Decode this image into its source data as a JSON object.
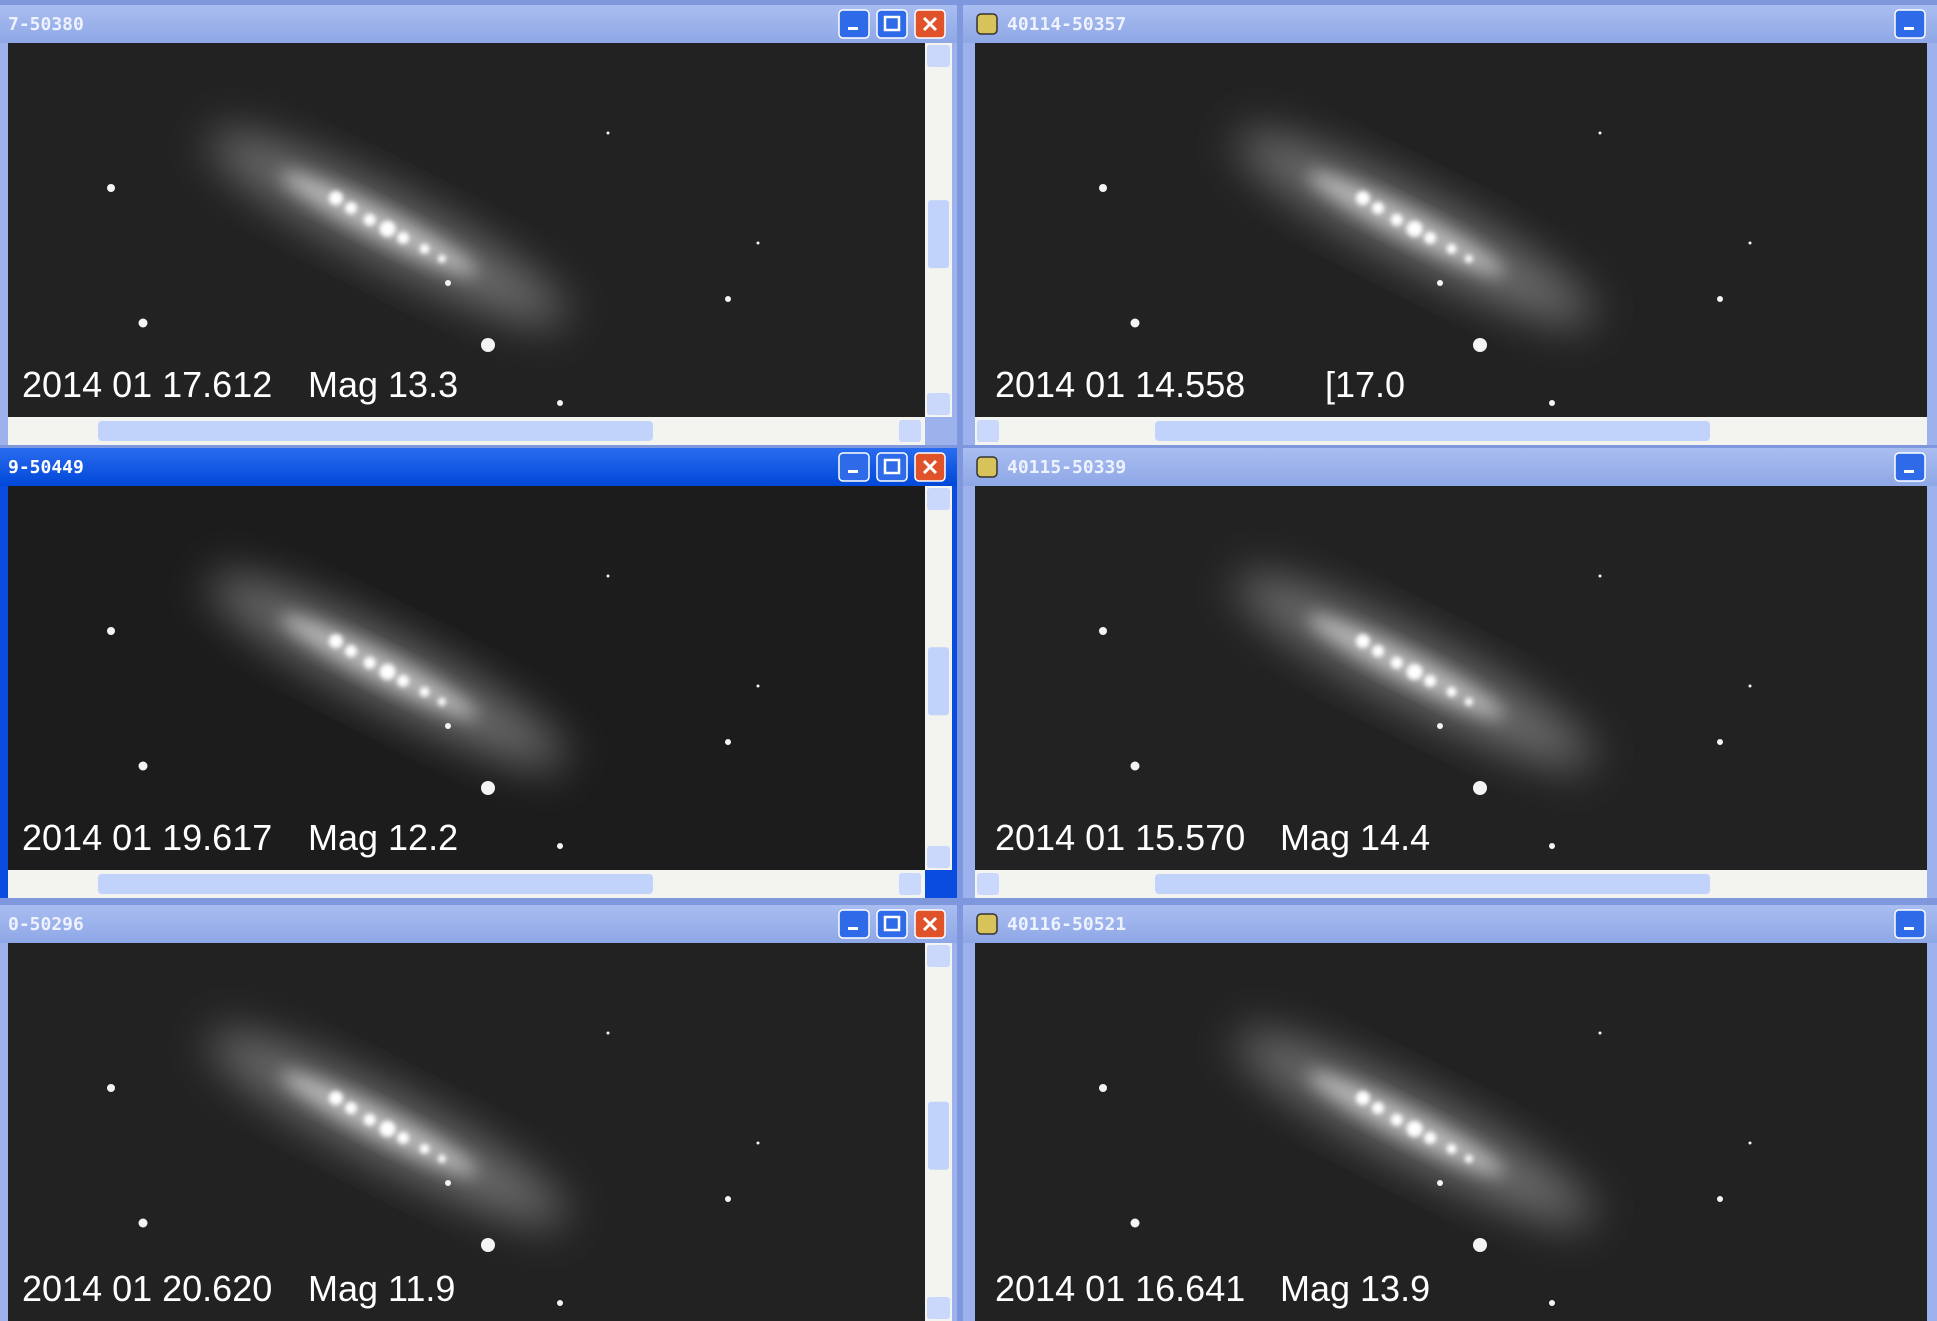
{
  "windows": [
    {
      "title": "7-50380",
      "date": "2014 01 17.612",
      "mag": "Mag 13.3"
    },
    {
      "title": "40114-50357",
      "date": "2014 01 14.558",
      "mag": "[17.0"
    },
    {
      "title": "9-50449",
      "date": "2014 01 19.617",
      "mag": "Mag 12.2"
    },
    {
      "title": "40115-50339",
      "date": "2014 01 15.570",
      "mag": "Mag 14.4"
    },
    {
      "title": "0-50296",
      "date": "2014 01 20.620",
      "mag": "Mag 11.9"
    },
    {
      "title": "40116-50521",
      "date": "2014 01 16.641",
      "mag": "Mag 13.9"
    }
  ]
}
